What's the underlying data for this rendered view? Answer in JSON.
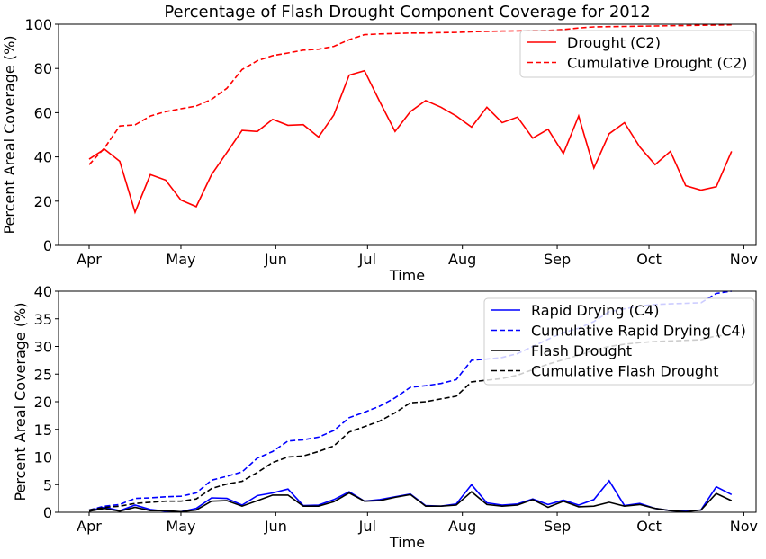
{
  "chart_data": [
    {
      "type": "line",
      "title": "Percentage of Flash Drought Component Coverage for 2012",
      "xlabel": "Time",
      "ylabel": "Percent Areal Coverage (%)",
      "ylim": [
        0,
        100
      ],
      "yticks": [
        "0",
        "20",
        "40",
        "60",
        "80",
        "100"
      ],
      "xticks": [
        "Apr",
        "May",
        "Jun",
        "Jul",
        "Aug",
        "Sep",
        "Oct",
        "Nov"
      ],
      "legend_position": "top-right",
      "x": [
        "2012-04-01",
        "2012-04-06",
        "2012-04-11",
        "2012-04-16",
        "2012-04-21",
        "2012-04-26",
        "2012-05-01",
        "2012-05-06",
        "2012-05-11",
        "2012-05-16",
        "2012-05-21",
        "2012-05-26",
        "2012-05-31",
        "2012-06-05",
        "2012-06-10",
        "2012-06-15",
        "2012-06-20",
        "2012-06-25",
        "2012-06-30",
        "2012-07-05",
        "2012-07-10",
        "2012-07-15",
        "2012-07-20",
        "2012-07-25",
        "2012-07-30",
        "2012-08-04",
        "2012-08-09",
        "2012-08-14",
        "2012-08-19",
        "2012-08-24",
        "2012-08-29",
        "2012-09-03",
        "2012-09-08",
        "2012-09-13",
        "2012-09-18",
        "2012-09-23",
        "2012-09-28",
        "2012-10-03",
        "2012-10-08",
        "2012-10-13",
        "2012-10-18",
        "2012-10-23",
        "2012-10-28"
      ],
      "series": [
        {
          "name": "Drought (C2)",
          "color": "#ff0000",
          "dash": "solid",
          "values": [
            39,
            43.5,
            38,
            15,
            32,
            29.5,
            20.5,
            17.5,
            32,
            42,
            52,
            51.5,
            57,
            54.3,
            54.6,
            49,
            59,
            77,
            79,
            65,
            51.5,
            60.5,
            65.5,
            62.5,
            58.5,
            53.5,
            62.5,
            55.5,
            58,
            48.5,
            52.5,
            41.5,
            58.5,
            35,
            50.5,
            55.5,
            44.5,
            36.5,
            42.5,
            27,
            25,
            26.5,
            42.5
          ]
        },
        {
          "name": "Cumulative Drought (C2)",
          "color": "#ff0000",
          "dash": "dashed",
          "values": [
            36.5,
            44,
            54,
            54.5,
            58.5,
            60.5,
            61.8,
            63,
            66,
            71,
            79.5,
            83.5,
            85.8,
            87,
            88.3,
            88.7,
            90,
            93,
            95.3,
            95.6,
            95.8,
            96,
            96,
            96.2,
            96.3,
            96.6,
            96.8,
            96.9,
            97,
            97.1,
            97.2,
            97.6,
            98.3,
            98.8,
            98.9,
            99,
            99.1,
            99.2,
            99.3,
            99.4,
            99.5,
            99.6,
            99.7
          ]
        }
      ]
    },
    {
      "type": "line",
      "title": "",
      "xlabel": "Time",
      "ylabel": "Percent Areal Coverage (%)",
      "ylim": [
        0,
        40
      ],
      "yticks": [
        "0",
        "5",
        "10",
        "15",
        "20",
        "25",
        "30",
        "35",
        "40"
      ],
      "xticks": [
        "Apr",
        "May",
        "Jun",
        "Jul",
        "Aug",
        "Sep",
        "Oct",
        "Nov"
      ],
      "legend_position": "top-right",
      "x": [
        "2012-04-01",
        "2012-04-06",
        "2012-04-11",
        "2012-04-16",
        "2012-04-21",
        "2012-04-26",
        "2012-05-01",
        "2012-05-06",
        "2012-05-11",
        "2012-05-16",
        "2012-05-21",
        "2012-05-26",
        "2012-05-31",
        "2012-06-05",
        "2012-06-10",
        "2012-06-15",
        "2012-06-20",
        "2012-06-25",
        "2012-06-30",
        "2012-07-05",
        "2012-07-10",
        "2012-07-15",
        "2012-07-20",
        "2012-07-25",
        "2012-07-30",
        "2012-08-04",
        "2012-08-09",
        "2012-08-14",
        "2012-08-19",
        "2012-08-24",
        "2012-08-29",
        "2012-09-03",
        "2012-09-08",
        "2012-09-13",
        "2012-09-18",
        "2012-09-23",
        "2012-09-28",
        "2012-10-03",
        "2012-10-08",
        "2012-10-13",
        "2012-10-18",
        "2012-10-23",
        "2012-10-28"
      ],
      "series": [
        {
          "name": "Rapid Drying (C4)",
          "color": "#0000ff",
          "dash": "solid",
          "values": [
            0.3,
            0.9,
            0.3,
            1.3,
            0.5,
            0.2,
            0.1,
            0.7,
            2.6,
            2.5,
            1.3,
            3,
            3.5,
            4.2,
            1.2,
            1.3,
            2.3,
            3.7,
            2,
            2.3,
            2.8,
            3.3,
            1.2,
            1.1,
            1.5,
            5,
            1.7,
            1.3,
            1.5,
            2.4,
            1.4,
            2.2,
            1.3,
            2.3,
            5.7,
            1.2,
            1.6,
            0.7,
            0.3,
            0.2,
            0.4,
            4.6,
            3.2
          ]
        },
        {
          "name": "Cumulative Rapid Drying (C4)",
          "color": "#0000ff",
          "dash": "dashed",
          "values": [
            0.4,
            1.1,
            1.4,
            2.5,
            2.6,
            2.8,
            2.9,
            3.5,
            5.8,
            6.5,
            7.3,
            9.8,
            11,
            12.9,
            13.1,
            13.6,
            14.8,
            17.1,
            18.1,
            19.2,
            20.7,
            22.6,
            22.9,
            23.3,
            24,
            27.5,
            27.7,
            28,
            28.7,
            30,
            31.3,
            32.5,
            33.3,
            34.5,
            36.3,
            36.8,
            37.3,
            37.6,
            37.7,
            37.8,
            37.9,
            39.6,
            40.5
          ]
        },
        {
          "name": "Flash Drought",
          "color": "#000000",
          "dash": "solid",
          "values": [
            0.2,
            0.7,
            0.2,
            0.9,
            0.3,
            0.3,
            0.1,
            0.4,
            2,
            2.1,
            1.1,
            2.1,
            3.1,
            3.1,
            1.1,
            1.1,
            1.9,
            3.5,
            2,
            2.1,
            2.7,
            3.2,
            1.1,
            1.1,
            1.3,
            3.7,
            1.4,
            1.1,
            1.3,
            2.3,
            0.9,
            2,
            1,
            1.1,
            1.8,
            1.1,
            1.4,
            0.7,
            0.3,
            0.1,
            0.4,
            3.4,
            2.1
          ]
        },
        {
          "name": "Cumulative Flash Drought",
          "color": "#000000",
          "dash": "dashed",
          "values": [
            0.4,
            0.9,
            1.1,
            1.6,
            1.8,
            2,
            2,
            2.4,
            4.3,
            5.1,
            5.6,
            7.2,
            9,
            10,
            10.2,
            11,
            12,
            14.5,
            15.5,
            16.5,
            18,
            19.8,
            20,
            20.5,
            21,
            23.6,
            23.9,
            24.2,
            24.8,
            25.8,
            26.8,
            27.6,
            28.4,
            29.3,
            30,
            30.4,
            30.7,
            30.9,
            31,
            31.1,
            31.2,
            31.9,
            32.1
          ]
        }
      ]
    }
  ]
}
